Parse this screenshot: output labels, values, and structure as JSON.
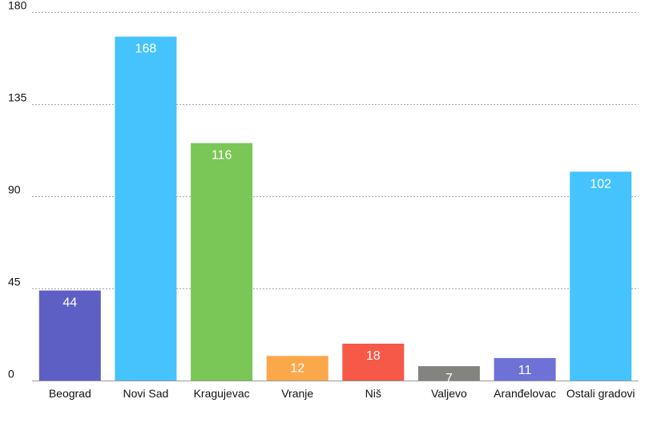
{
  "chart_data": {
    "type": "bar",
    "categories": [
      "Beograd",
      "Novi Sad",
      "Kragujevac",
      "Vranje",
      "Niš",
      "Valjevo",
      "Aranđelovac",
      "Ostali gradovi"
    ],
    "values": [
      44,
      168,
      116,
      12,
      18,
      7,
      11,
      102
    ],
    "colors": [
      "#5e5fc4",
      "#45c3fd",
      "#7ac656",
      "#fba84b",
      "#f65947",
      "#838380",
      "#6e71d6",
      "#45c3fd"
    ],
    "ylim": [
      0,
      180
    ],
    "yticks": [
      0,
      45,
      90,
      135,
      180
    ],
    "grid": true,
    "gridstyle": "dotted",
    "title": "",
    "xlabel": "",
    "ylabel": ""
  }
}
